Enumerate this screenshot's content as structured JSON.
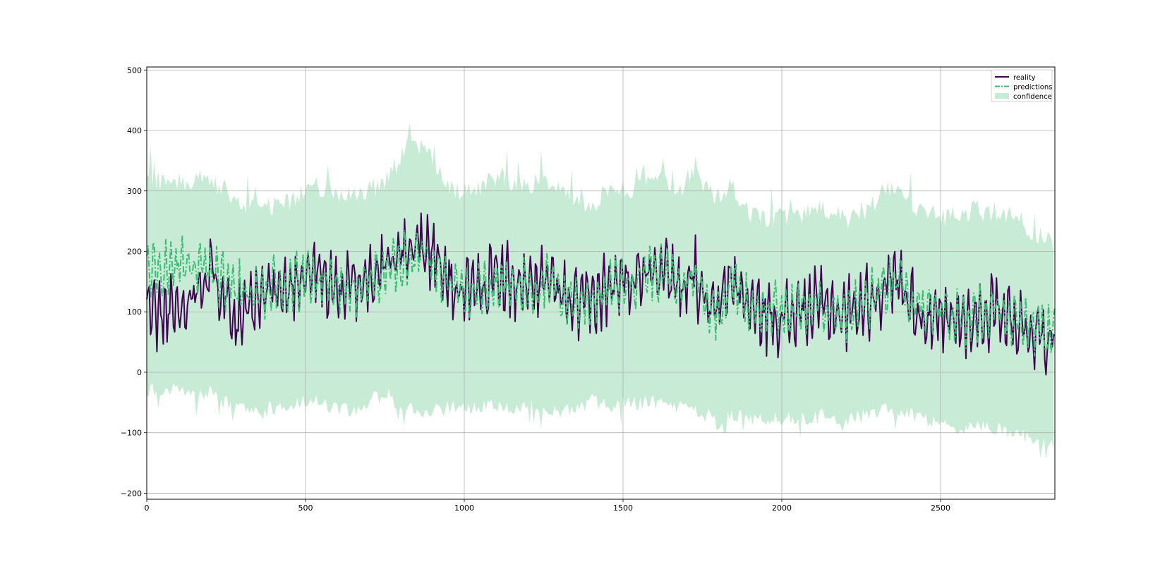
{
  "chart_data": {
    "type": "line",
    "title": "",
    "xlabel": "",
    "ylabel": "",
    "xlim": [
      0,
      2860
    ],
    "ylim": [
      -210,
      505
    ],
    "x_ticks": [
      0,
      500,
      1000,
      1500,
      2000,
      2500
    ],
    "y_ticks": [
      -200,
      -100,
      0,
      100,
      200,
      300,
      400,
      500
    ],
    "x_tick_labels": [
      "0",
      "500",
      "1000",
      "1500",
      "2000",
      "2500"
    ],
    "y_tick_labels": [
      "−200",
      "−100",
      "0",
      "100",
      "200",
      "300",
      "400",
      "500"
    ],
    "grid": true,
    "legend_position": "top-right",
    "colors": {
      "reality": "#440154",
      "predictions": "#3dbc74",
      "confidence": "#c7ebd5"
    },
    "series": [
      {
        "name": "reality",
        "style": "solid",
        "x": [
          0,
          40,
          80,
          120,
          160,
          200,
          240,
          280,
          320,
          360,
          400,
          440,
          480,
          520,
          560,
          600,
          640,
          680,
          720,
          760,
          800,
          840,
          880,
          920,
          960,
          1000,
          1040,
          1080,
          1120,
          1160,
          1200,
          1240,
          1280,
          1320,
          1360,
          1400,
          1440,
          1480,
          1520,
          1560,
          1600,
          1640,
          1680,
          1720,
          1760,
          1800,
          1840,
          1880,
          1920,
          1960,
          2000,
          2040,
          2080,
          2120,
          2160,
          2200,
          2240,
          2280,
          2320,
          2360,
          2400,
          2440,
          2480,
          2520,
          2560,
          2600,
          2640,
          2680,
          2720,
          2760,
          2800,
          2860
        ],
        "values": [
          110,
          95,
          100,
          110,
          150,
          165,
          140,
          90,
          95,
          120,
          140,
          130,
          160,
          170,
          150,
          135,
          140,
          150,
          165,
          175,
          200,
          215,
          210,
          180,
          140,
          125,
          135,
          150,
          160,
          140,
          135,
          150,
          140,
          120,
          110,
          115,
          135,
          145,
          150,
          170,
          180,
          170,
          140,
          170,
          110,
          100,
          160,
          120,
          100,
          95,
          90,
          95,
          105,
          110,
          105,
          95,
          110,
          120,
          140,
          160,
          125,
          95,
          85,
          80,
          85,
          90,
          95,
          110,
          90,
          75,
          65,
          60
        ]
      },
      {
        "name": "predictions",
        "style": "dashdot",
        "x": [
          0,
          40,
          80,
          120,
          160,
          200,
          240,
          280,
          320,
          360,
          400,
          440,
          480,
          520,
          560,
          600,
          640,
          680,
          720,
          760,
          800,
          840,
          880,
          920,
          960,
          1000,
          1040,
          1080,
          1120,
          1160,
          1200,
          1240,
          1280,
          1320,
          1360,
          1400,
          1440,
          1480,
          1520,
          1560,
          1600,
          1640,
          1680,
          1720,
          1760,
          1800,
          1840,
          1880,
          1920,
          1960,
          2000,
          2040,
          2080,
          2120,
          2160,
          2200,
          2240,
          2280,
          2320,
          2360,
          2400,
          2440,
          2480,
          2520,
          2560,
          2600,
          2640,
          2680,
          2720,
          2760,
          2800,
          2860
        ],
        "values": [
          175,
          170,
          175,
          170,
          165,
          170,
          155,
          140,
          130,
          130,
          140,
          135,
          150,
          160,
          150,
          140,
          140,
          145,
          160,
          170,
          185,
          200,
          195,
          170,
          140,
          130,
          135,
          150,
          150,
          140,
          140,
          150,
          140,
          125,
          115,
          120,
          135,
          140,
          150,
          165,
          170,
          160,
          140,
          165,
          120,
          100,
          150,
          120,
          105,
          100,
          100,
          100,
          105,
          110,
          105,
          100,
          110,
          120,
          135,
          150,
          120,
          100,
          95,
          90,
          90,
          95,
          100,
          110,
          95,
          85,
          75,
          65
        ]
      },
      {
        "name": "confidence",
        "style": "band",
        "x": [
          0,
          40,
          80,
          120,
          160,
          200,
          240,
          280,
          320,
          360,
          400,
          440,
          480,
          520,
          560,
          600,
          640,
          680,
          720,
          760,
          800,
          840,
          880,
          920,
          960,
          1000,
          1040,
          1080,
          1120,
          1160,
          1200,
          1240,
          1280,
          1320,
          1360,
          1400,
          1440,
          1480,
          1520,
          1560,
          1600,
          1640,
          1680,
          1720,
          1760,
          1800,
          1840,
          1880,
          1920,
          1960,
          2000,
          2040,
          2080,
          2120,
          2160,
          2200,
          2240,
          2280,
          2320,
          2360,
          2400,
          2440,
          2480,
          2520,
          2560,
          2600,
          2640,
          2680,
          2720,
          2760,
          2800,
          2860
        ],
        "lower": [
          -30,
          -35,
          -30,
          -35,
          -40,
          -35,
          -50,
          -60,
          -70,
          -70,
          -60,
          -65,
          -50,
          -45,
          -55,
          -65,
          -65,
          -60,
          -45,
          -35,
          -70,
          -60,
          -70,
          -65,
          -60,
          -65,
          -60,
          -55,
          -60,
          -60,
          -60,
          -60,
          -65,
          -65,
          -55,
          -50,
          -55,
          -55,
          -50,
          -55,
          -50,
          -55,
          -60,
          -60,
          -70,
          -90,
          -70,
          -75,
          -80,
          -80,
          -80,
          -80,
          -80,
          -75,
          -75,
          -80,
          -75,
          -75,
          -60,
          -65,
          -70,
          -80,
          -85,
          -90,
          -95,
          -95,
          -95,
          -95,
          -100,
          -110,
          -115,
          -125
        ],
        "upper": [
          330,
          320,
          320,
          320,
          320,
          320,
          300,
          290,
          280,
          275,
          280,
          280,
          300,
          310,
          305,
          300,
          300,
          300,
          310,
          320,
          360,
          390,
          370,
          330,
          310,
          300,
          310,
          320,
          330,
          310,
          310,
          320,
          310,
          295,
          280,
          280,
          295,
          300,
          305,
          320,
          330,
          315,
          300,
          330,
          310,
          290,
          310,
          270,
          265,
          260,
          260,
          260,
          265,
          270,
          265,
          255,
          265,
          275,
          300,
          315,
          290,
          270,
          265,
          260,
          265,
          270,
          270,
          270,
          260,
          245,
          230,
          215
        ]
      }
    ]
  }
}
